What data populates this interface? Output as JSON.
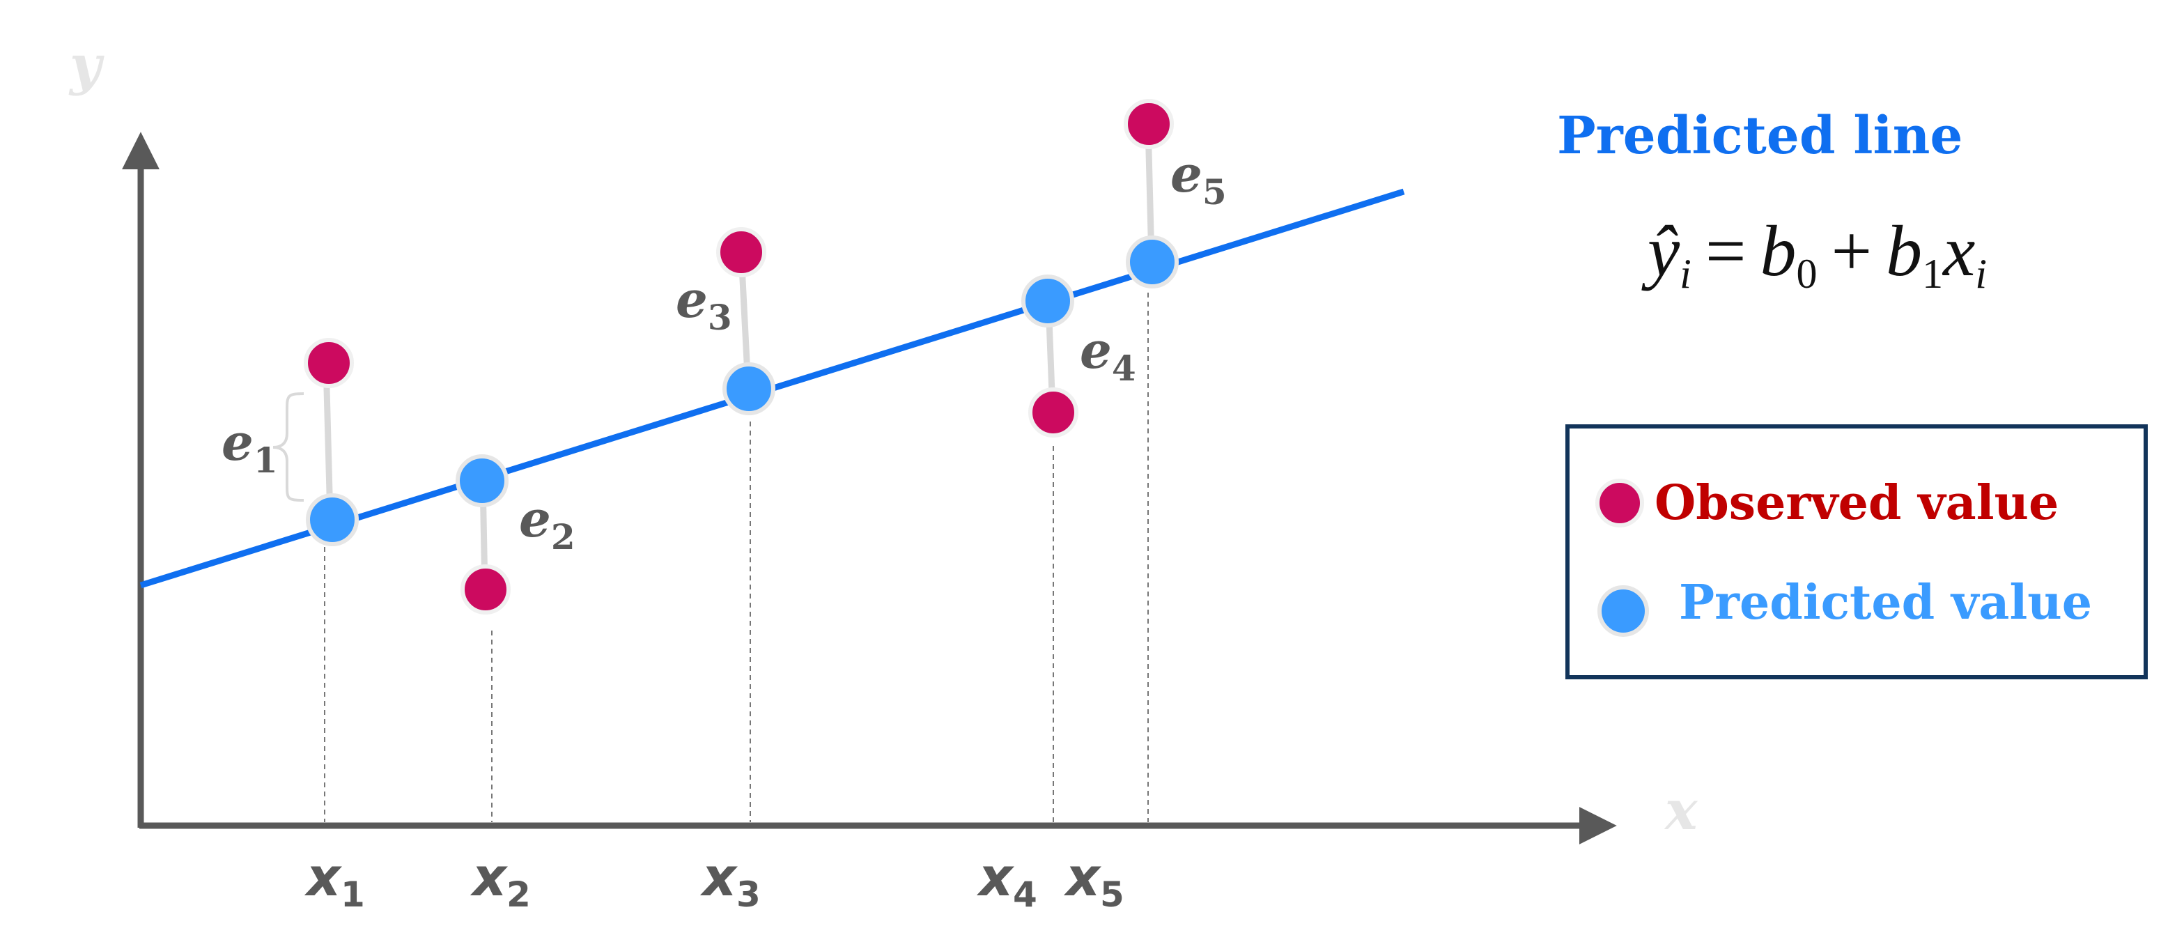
{
  "diagram": {
    "y_axis_label": "y",
    "x_axis_label": "x",
    "title": "Predicted line",
    "equation": {
      "lhs": "ŷ",
      "lhs_sub": "i",
      "equals": "=",
      "b0": "b",
      "b0_sub": "0",
      "plus": "+",
      "b1": "b",
      "b1_sub": "1",
      "x": "x",
      "x_sub": "i"
    },
    "points": [
      {
        "x_label": "x",
        "x_sub": "1",
        "residual_label": "e",
        "residual_sub": "1"
      },
      {
        "x_label": "x",
        "x_sub": "2",
        "residual_label": "e",
        "residual_sub": "2"
      },
      {
        "x_label": "x",
        "x_sub": "3",
        "residual_label": "e",
        "residual_sub": "3"
      },
      {
        "x_label": "x",
        "x_sub": "4",
        "residual_label": "e",
        "residual_sub": "4"
      },
      {
        "x_label": "x",
        "x_sub": "5",
        "residual_label": "e",
        "residual_sub": "5"
      }
    ],
    "legend": {
      "observed_label": "Observed value",
      "predicted_label": "Predicted value"
    },
    "colors": {
      "observed": "#cc0a5f",
      "predicted": "#3a9bff",
      "line": "#0f6ff0",
      "axis": "#595959",
      "legend_border": "#12345a",
      "observed_text": "#c00000",
      "predicted_text": "#3a9bff"
    }
  }
}
